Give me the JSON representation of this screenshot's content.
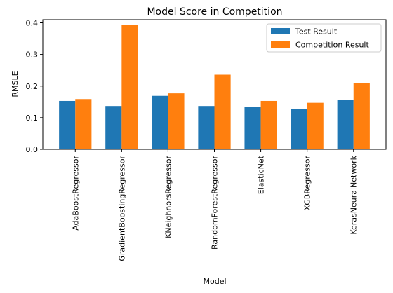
{
  "chart_data": {
    "type": "bar",
    "title": "Model Score in Competition",
    "xlabel": "Model",
    "ylabel": "RMSLE",
    "categories": [
      "AdaBoostRegressor",
      "GradientBoostingRegressor",
      "KNeighnorsRegressor",
      "RandomForestRegressor",
      "ElasticNet",
      "XGBRegressor",
      "KerasNeuralNetwork"
    ],
    "series": [
      {
        "name": "Test Result",
        "color": "#1f77b4",
        "values": [
          0.153,
          0.137,
          0.169,
          0.137,
          0.133,
          0.127,
          0.157
        ]
      },
      {
        "name": "Competition Result",
        "color": "#ff7f0e",
        "values": [
          0.159,
          0.393,
          0.177,
          0.236,
          0.153,
          0.147,
          0.209
        ]
      }
    ],
    "ylim": [
      0,
      0.41
    ],
    "yticks": [
      "0.0",
      "0.1",
      "0.2",
      "0.3",
      "0.4"
    ],
    "grid": false,
    "legend_position": "top-right"
  }
}
